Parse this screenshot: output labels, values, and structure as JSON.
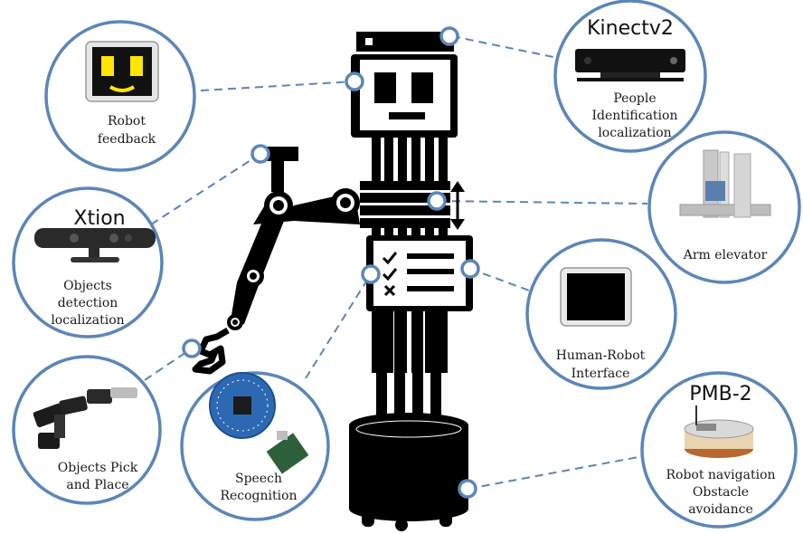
{
  "colors": {
    "accent": "#5b86b9",
    "robot": "#000000",
    "background": "#ffffff"
  },
  "callouts": {
    "robot_feedback": {
      "line1": "Robot",
      "line2": "feedback",
      "icon": "tablet-face-icon"
    },
    "kinect": {
      "title": "Kinectv2",
      "line1": "People",
      "line2": "Identification",
      "line3": "localization",
      "icon": "kinect-sensor-icon"
    },
    "xtion": {
      "title": "Xtion",
      "line1": "Objects",
      "line2": "detection",
      "line3": "localization",
      "icon": "xtion-sensor-icon"
    },
    "arm_elevator": {
      "line1": "Arm elevator",
      "icon": "linear-elevator-icon"
    },
    "hri": {
      "line1": "Human-Robot",
      "line2": "Interface",
      "icon": "tablet-icon"
    },
    "pick_place": {
      "line1": "Objects Pick",
      "line2": "and Place",
      "icon": "robot-arm-icon"
    },
    "speech": {
      "line1": "Speech",
      "line2": "Recognition",
      "icon": "microphone-board-icon"
    },
    "pmb2": {
      "title": "PMB-2",
      "line1": "Robot navigation",
      "line2": "Obstacle",
      "line3": "avoidance",
      "icon": "mobile-base-icon"
    }
  }
}
